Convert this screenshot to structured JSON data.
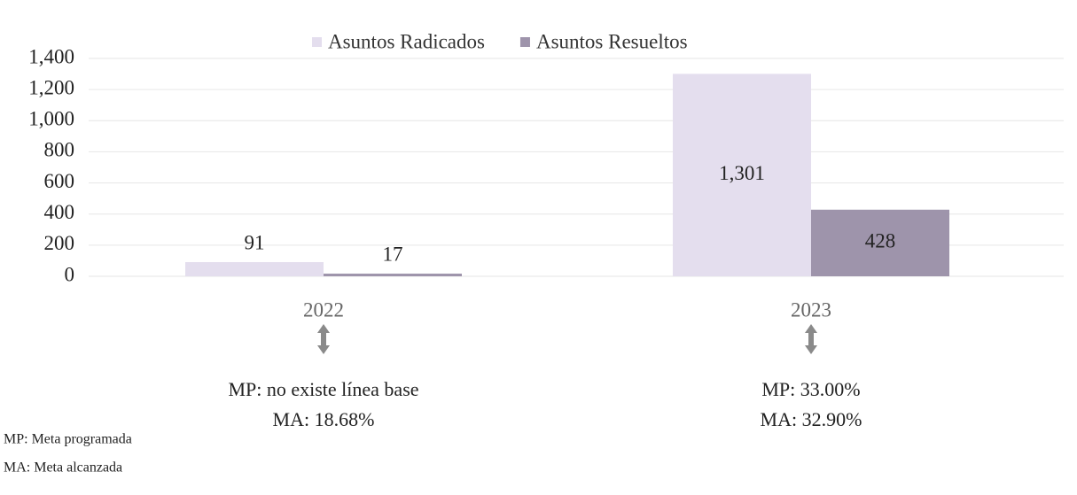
{
  "chart_data": {
    "type": "bar",
    "categories": [
      "2022",
      "2023"
    ],
    "series": [
      {
        "name": "Asuntos Radicados",
        "color": "#e4deee",
        "values": [
          91,
          1301
        ],
        "value_labels": [
          "91",
          "1,301"
        ]
      },
      {
        "name": "Asuntos Resueltos",
        "color": "#9e94ab",
        "values": [
          17,
          428
        ]
      }
    ],
    "ylim": [
      0,
      1400
    ],
    "yticks": [
      0,
      200,
      400,
      600,
      800,
      {
        "value": 1000,
        "label": "1,000"
      },
      {
        "value": 1200,
        "label": "1,200"
      },
      {
        "value": 1400,
        "label": "1,400"
      }
    ],
    "grid": true,
    "legend": "top",
    "category_notes": [
      [
        "MP: no existe línea base",
        "MA: 18.68%"
      ],
      [
        "MP: 33.00%",
        "MA: 32.90%"
      ]
    ],
    "footnotes": [
      "MP: Meta programada",
      "MA: Meta alcanzada"
    ]
  }
}
